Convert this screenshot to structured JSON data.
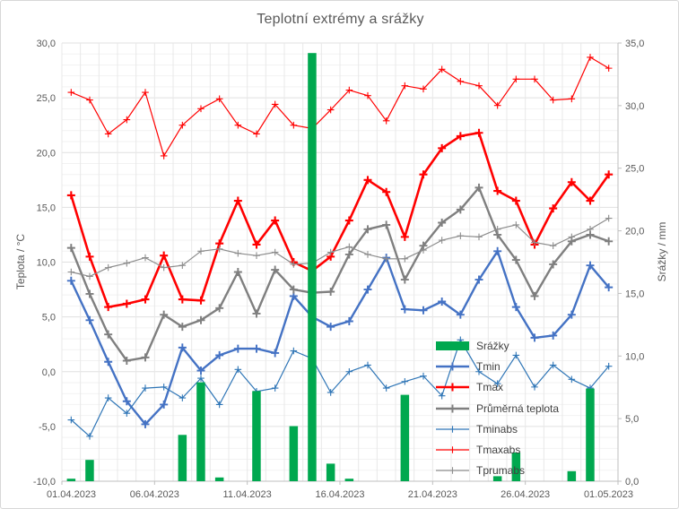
{
  "chart": {
    "title": "Teplotní extrémy a srážky",
    "left_axis": {
      "title": "Teplota / °C",
      "min": -10,
      "max": 30,
      "step": 5,
      "tick_labels": [
        "30,0",
        "25,0",
        "20,0",
        "15,0",
        "10,0",
        "5,0",
        "0,0",
        "-5,0",
        "-10,0"
      ]
    },
    "right_axis": {
      "title": "Srážky / mm",
      "min": 0,
      "max": 35,
      "step": 5,
      "tick_labels": [
        "35,0",
        "30,0",
        "25,0",
        "20,0",
        "15,0",
        "10,0",
        "5,0",
        "0,0"
      ]
    },
    "x_axis": {
      "tick_labels": [
        "01.04.2023",
        "06.04.2023",
        "11.04.2023",
        "16.04.2023",
        "21.04.2023",
        "26.04.2023",
        "01.05.2023"
      ],
      "tick_positions_days": [
        0,
        5,
        10,
        15,
        20,
        25,
        30
      ]
    }
  },
  "chart_data": {
    "type": "combo",
    "x_days": [
      1,
      2,
      3,
      4,
      5,
      6,
      7,
      8,
      9,
      10,
      11,
      12,
      13,
      14,
      15,
      16,
      17,
      18,
      19,
      20,
      21,
      22,
      23,
      24,
      25,
      26,
      27,
      28,
      29,
      30
    ],
    "x_range": [
      "01.04.2023",
      "30.04.2023"
    ],
    "left_ylim": [
      -10,
      30
    ],
    "right_ylim": [
      0,
      35
    ],
    "grid": true,
    "legend_position": "right-center-overlay",
    "series": [
      {
        "name": "Srážky",
        "type": "bar",
        "axis": "right",
        "color": "#00a84f",
        "values": [
          0.2,
          1.7,
          0,
          0,
          0,
          0,
          3.7,
          7.9,
          0.3,
          0,
          7.2,
          0,
          4.4,
          34.2,
          1.4,
          0.2,
          0,
          0,
          6.9,
          0,
          0,
          0,
          0,
          0.4,
          2.3,
          0,
          0,
          0.8,
          7.4,
          0
        ]
      },
      {
        "name": "Tmin",
        "type": "line",
        "axis": "left",
        "color": "#4472c4",
        "width": 2.4,
        "values": [
          8.3,
          4.7,
          0.9,
          -2.7,
          -4.8,
          -3.0,
          2.2,
          0.1,
          1.5,
          2.1,
          2.1,
          1.7,
          6.9,
          5.0,
          4.1,
          4.6,
          7.5,
          10.4,
          5.7,
          5.6,
          6.4,
          5.2,
          8.4,
          11.0,
          5.9,
          3.1,
          3.3,
          5.2,
          9.7,
          7.7
        ]
      },
      {
        "name": "Tmax",
        "type": "line",
        "axis": "left",
        "color": "#ff0000",
        "width": 2.6,
        "values": [
          16.1,
          10.5,
          5.9,
          6.2,
          6.6,
          10.6,
          6.6,
          6.5,
          11.7,
          15.6,
          11.6,
          13.8,
          10.0,
          9.2,
          10.5,
          13.8,
          17.5,
          16.4,
          12.3,
          18.0,
          20.4,
          21.5,
          21.8,
          16.5,
          15.6,
          11.6,
          14.9,
          17.3,
          15.6,
          18.0
        ]
      },
      {
        "name": "Průměrná teplota",
        "type": "line",
        "axis": "left",
        "color": "#7f7f7f",
        "width": 2.4,
        "values": [
          11.3,
          7.1,
          3.4,
          1.0,
          1.3,
          5.2,
          4.1,
          4.7,
          5.8,
          9.1,
          5.3,
          9.3,
          7.5,
          7.2,
          7.3,
          10.7,
          13.0,
          13.4,
          8.4,
          11.5,
          13.6,
          14.8,
          16.8,
          12.5,
          10.2,
          6.9,
          9.8,
          11.9,
          12.5,
          11.9
        ]
      },
      {
        "name": "Tminabs",
        "type": "line",
        "axis": "left",
        "color": "#2e75b6",
        "width": 1.2,
        "values": [
          -4.4,
          -5.9,
          -2.4,
          -3.8,
          -1.5,
          -1.4,
          -2.4,
          -0.6,
          -3.0,
          0.2,
          -1.8,
          -1.5,
          1.9,
          1.2,
          -1.9,
          0.0,
          0.6,
          -1.5,
          -0.9,
          -0.4,
          -2.2,
          2.9,
          0.0,
          -1.1,
          1.5,
          -1.4,
          0.6,
          -0.7,
          -1.5,
          0.5
        ]
      },
      {
        "name": "Tmaxabs",
        "type": "line",
        "axis": "left",
        "color": "#ff0000",
        "width": 1.2,
        "values": [
          25.5,
          24.8,
          21.7,
          23.0,
          25.5,
          19.7,
          22.5,
          24.0,
          24.9,
          22.5,
          21.7,
          24.4,
          22.5,
          22.2,
          23.9,
          25.7,
          25.2,
          22.9,
          26.1,
          25.8,
          27.6,
          26.5,
          26.1,
          24.3,
          26.7,
          26.7,
          24.8,
          24.9,
          28.7,
          27.7
        ]
      },
      {
        "name": "Tprumabs",
        "type": "line",
        "axis": "left",
        "color": "#8c8c8c",
        "width": 1.2,
        "values": [
          9.1,
          8.7,
          9.5,
          9.9,
          10.4,
          9.5,
          9.7,
          11.0,
          11.2,
          10.8,
          10.6,
          10.9,
          9.8,
          9.9,
          10.9,
          11.4,
          10.7,
          10.3,
          10.3,
          11.1,
          12.0,
          12.4,
          12.3,
          13.0,
          13.4,
          11.8,
          11.5,
          12.3,
          13.0,
          14.0
        ]
      }
    ]
  },
  "colors": {
    "grid_major": "#e0e0e0",
    "grid_minor": "#f2f2f2",
    "axis_line": "#bfbfbf",
    "text": "#595959"
  }
}
